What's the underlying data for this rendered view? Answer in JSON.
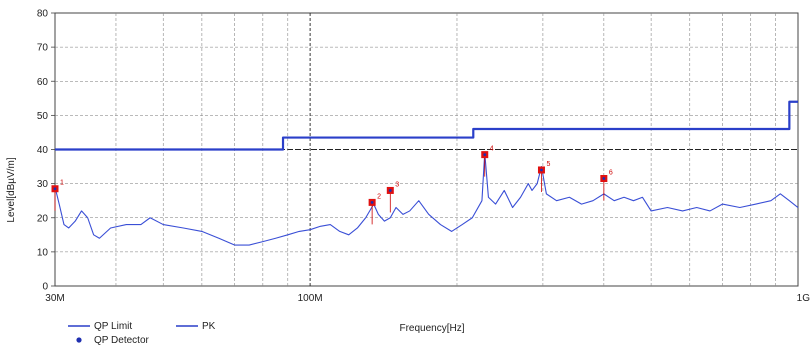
{
  "chart_data": {
    "type": "line",
    "title": "",
    "xlabel": "Frequency[Hz]",
    "ylabel": "Level[dBµV/m]",
    "x_scale": "log",
    "xlim": [
      30000000,
      1000000000
    ],
    "ylim": [
      0,
      80
    ],
    "x_ticks": [
      {
        "value": 30000000,
        "label": "30M"
      },
      {
        "value": 100000000,
        "label": "100M"
      },
      {
        "value": 1000000000,
        "label": "1G"
      }
    ],
    "y_ticks": [
      0,
      10,
      20,
      30,
      40,
      50,
      60,
      70,
      80
    ],
    "grid": true,
    "legend": {
      "placement": "bottom-left",
      "entries": [
        {
          "label": "QP Limit",
          "color": "#2a3fc9",
          "marker": "line"
        },
        {
          "label": "PK",
          "color": "#2a3fc9",
          "marker": "line"
        },
        {
          "label": "QP Detector",
          "color": "#1f2fb0",
          "marker": "dot"
        }
      ]
    },
    "series": [
      {
        "name": "QP Limit",
        "color": "#2a3fc9",
        "step": true,
        "points": [
          [
            30000000,
            40
          ],
          [
            88000000,
            40
          ],
          [
            88000000,
            43.5
          ],
          [
            216000000,
            43.5
          ],
          [
            216000000,
            46
          ],
          [
            960000000,
            46
          ],
          [
            960000000,
            54
          ],
          [
            1000000000,
            54
          ]
        ]
      },
      {
        "name": "PK",
        "color": "#3a4fd6",
        "points": [
          [
            30000000,
            29
          ],
          [
            30600000,
            24
          ],
          [
            31300000,
            18
          ],
          [
            32000000,
            17
          ],
          [
            33000000,
            19
          ],
          [
            34000000,
            22
          ],
          [
            35000000,
            20
          ],
          [
            36000000,
            15
          ],
          [
            37000000,
            14
          ],
          [
            39000000,
            17
          ],
          [
            42000000,
            18
          ],
          [
            45000000,
            18
          ],
          [
            47000000,
            20
          ],
          [
            50000000,
            18
          ],
          [
            55000000,
            17
          ],
          [
            60000000,
            16
          ],
          [
            65000000,
            14
          ],
          [
            70000000,
            12
          ],
          [
            75000000,
            12
          ],
          [
            80000000,
            13
          ],
          [
            85000000,
            14
          ],
          [
            90000000,
            15
          ],
          [
            95000000,
            16
          ],
          [
            100000000,
            16.5
          ],
          [
            105000000,
            17.5
          ],
          [
            110000000,
            18
          ],
          [
            115000000,
            16
          ],
          [
            120000000,
            15
          ],
          [
            125000000,
            17
          ],
          [
            130000000,
            20
          ],
          [
            135000000,
            24
          ],
          [
            138000000,
            21
          ],
          [
            142000000,
            19
          ],
          [
            146000000,
            20
          ],
          [
            150000000,
            23
          ],
          [
            155000000,
            21
          ],
          [
            160000000,
            22
          ],
          [
            167000000,
            25
          ],
          [
            175000000,
            21
          ],
          [
            185000000,
            18
          ],
          [
            195000000,
            16
          ],
          [
            205000000,
            18
          ],
          [
            215000000,
            20
          ],
          [
            225000000,
            25
          ],
          [
            228000000,
            39
          ],
          [
            232000000,
            26
          ],
          [
            240000000,
            24
          ],
          [
            250000000,
            28
          ],
          [
            260000000,
            23
          ],
          [
            270000000,
            26
          ],
          [
            280000000,
            30
          ],
          [
            285000000,
            28
          ],
          [
            292000000,
            30
          ],
          [
            298000000,
            35
          ],
          [
            305000000,
            27
          ],
          [
            320000000,
            25
          ],
          [
            340000000,
            26
          ],
          [
            360000000,
            24
          ],
          [
            380000000,
            25
          ],
          [
            400000000,
            27
          ],
          [
            420000000,
            25
          ],
          [
            440000000,
            26
          ],
          [
            460000000,
            25
          ],
          [
            480000000,
            26
          ],
          [
            500000000,
            22
          ],
          [
            540000000,
            23
          ],
          [
            580000000,
            22
          ],
          [
            620000000,
            23
          ],
          [
            660000000,
            22
          ],
          [
            700000000,
            24
          ],
          [
            760000000,
            23
          ],
          [
            820000000,
            24
          ],
          [
            880000000,
            25
          ],
          [
            920000000,
            27
          ],
          [
            960000000,
            25
          ],
          [
            1000000000,
            23
          ]
        ]
      }
    ],
    "markers": [
      {
        "label": "1",
        "x": 30000000,
        "y": 28.5
      },
      {
        "label": "2",
        "x": 134000000,
        "y": 24.5
      },
      {
        "label": "3",
        "x": 146000000,
        "y": 28
      },
      {
        "label": "4",
        "x": 228000000,
        "y": 38.5
      },
      {
        "label": "5",
        "x": 298000000,
        "y": 34
      },
      {
        "label": "6",
        "x": 400000000,
        "y": 31.5
      }
    ]
  }
}
